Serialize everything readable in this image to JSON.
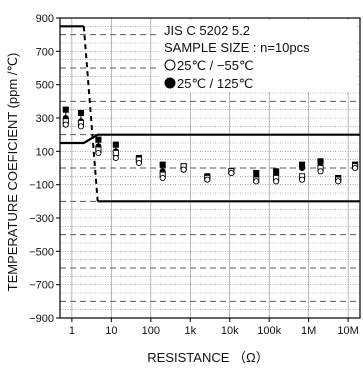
{
  "chart_data": {
    "type": "scatter",
    "xlabel": "RESISTANCE （Ω）",
    "ylabel": "TEMPERATURE COEFICIENT (ppm /℃)",
    "x_scale": "log",
    "xlim_ohm": [
      0.5,
      20000000
    ],
    "ylim": [
      -900,
      900
    ],
    "x_ticks": [
      {
        "value": 1,
        "label": "1"
      },
      {
        "value": 10,
        "label": "10"
      },
      {
        "value": 100,
        "label": "100"
      },
      {
        "value": 1000,
        "label": "1k"
      },
      {
        "value": 10000,
        "label": "10k"
      },
      {
        "value": 100000,
        "label": "100k"
      },
      {
        "value": 1000000,
        "label": "1M"
      },
      {
        "value": 10000000,
        "label": "10M"
      }
    ],
    "y_ticks": [
      {
        "value": 900,
        "label": "900"
      },
      {
        "value": 700,
        "label": "700"
      },
      {
        "value": 500,
        "label": "500"
      },
      {
        "value": 300,
        "label": "300"
      },
      {
        "value": 100,
        "label": "100"
      },
      {
        "value": -100,
        "label": "−100"
      },
      {
        "value": -300,
        "label": "−300"
      },
      {
        "value": -500,
        "label": "−500"
      },
      {
        "value": -700,
        "label": "−700"
      },
      {
        "value": -900,
        "label": "−900"
      }
    ],
    "grid": true,
    "legend": {
      "placement": "top-right",
      "standard": "JIS C 5202 5.2",
      "sample_size": "SAMPLE SIZE : n=10pcs",
      "entries": [
        {
          "label": "25℃ / −55℃",
          "marker": "open-circle"
        },
        {
          "label": "25℃ / 125℃",
          "marker": "filled-circle"
        }
      ]
    },
    "limits": {
      "upper_spec": [
        [
          0.5,
          150
        ],
        [
          2,
          150
        ],
        [
          4.5,
          200
        ],
        [
          20000000,
          200
        ]
      ],
      "lower_spec": [
        [
          4.5,
          -200
        ],
        [
          20000000,
          -200
        ]
      ],
      "upper_low_range": [
        [
          0.5,
          850
        ],
        [
          2,
          850
        ]
      ],
      "dashed_transition": [
        [
          2,
          850
        ],
        [
          4.5,
          -200
        ]
      ]
    },
    "series": [
      {
        "marker": "filled-circle",
        "points": [
          {
            "x": 0.7,
            "max": 350,
            "min": 300
          },
          {
            "x": 1.7,
            "max": 330,
            "min": 280
          },
          {
            "x": 4.7,
            "max": 170,
            "min": 130
          },
          {
            "x": 13,
            "max": 140,
            "min": 100
          },
          {
            "x": 50,
            "max": 60,
            "min": 40
          },
          {
            "x": 200,
            "max": 20,
            "min": -20
          },
          {
            "x": 680,
            "max": 10,
            "min": -10
          },
          {
            "x": 2700,
            "max": -50,
            "min": -60
          },
          {
            "x": 11000,
            "max": -20,
            "min": -30
          },
          {
            "x": 47000,
            "max": -30,
            "min": -50
          },
          {
            "x": 150000,
            "max": -20,
            "min": -40
          },
          {
            "x": 680000,
            "max": 20,
            "min": 0
          },
          {
            "x": 2000000,
            "max": 40,
            "min": 10
          },
          {
            "x": 5600000,
            "max": -60,
            "min": -70
          },
          {
            "x": 15000000,
            "max": 20,
            "min": 10
          }
        ]
      },
      {
        "marker": "open-circle",
        "points": [
          {
            "x": 0.7,
            "max": 280,
            "min": 260
          },
          {
            "x": 1.7,
            "max": 270,
            "min": 250
          },
          {
            "x": 4.7,
            "max": 110,
            "min": 90
          },
          {
            "x": 13,
            "max": 90,
            "min": 60
          },
          {
            "x": 50,
            "max": 50,
            "min": 30
          },
          {
            "x": 200,
            "max": -40,
            "min": -60
          },
          {
            "x": 680,
            "max": 10,
            "min": -10
          },
          {
            "x": 2700,
            "max": -60,
            "min": -70
          },
          {
            "x": 11000,
            "max": -20,
            "min": -30
          },
          {
            "x": 47000,
            "max": -70,
            "min": -80
          },
          {
            "x": 150000,
            "max": -60,
            "min": -80
          },
          {
            "x": 680000,
            "max": -50,
            "min": -70
          },
          {
            "x": 2000000,
            "max": 0,
            "min": -20
          },
          {
            "x": 5600000,
            "max": -70,
            "min": -80
          },
          {
            "x": 15000000,
            "max": 10,
            "min": 0
          }
        ]
      }
    ]
  }
}
